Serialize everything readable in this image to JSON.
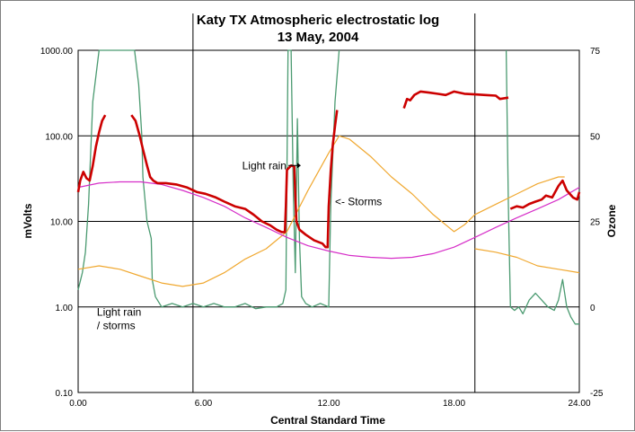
{
  "chart_data": {
    "type": "line",
    "title": "Katy TX Atmospheric electrostatic log",
    "subtitle": "13 May, 2004",
    "xlabel": "Central Standard Time",
    "ylabel_left": "mVolts",
    "ylabel_right": "Ozone",
    "xlim": [
      0,
      24
    ],
    "ylim_left": [
      0.1,
      1000
    ],
    "yscale_left": "log",
    "ylim_right": [
      -25,
      75
    ],
    "x_ticks": [
      "0.00",
      "6.00",
      "12.00",
      "18.00",
      "24.00"
    ],
    "y_ticks_left": [
      "1000.00",
      "100.00",
      "10.00",
      "1.00",
      "0.10"
    ],
    "y_ticks_right": [
      "75",
      "50",
      "25",
      "0",
      "-25"
    ],
    "grid": true,
    "vertical_markers": [
      5.5,
      19
    ],
    "series": [
      {
        "color": "#cc0000",
        "axis": "left",
        "segments": [
          [
            [
              0.0,
              22
            ],
            [
              0.1,
              30
            ],
            [
              0.25,
              38
            ],
            [
              0.4,
              32
            ],
            [
              0.55,
              30
            ],
            [
              0.7,
              45
            ],
            [
              0.85,
              75
            ],
            [
              1.0,
              110
            ],
            [
              1.15,
              150
            ],
            [
              1.3,
              175
            ]
          ],
          [
            [
              2.55,
              175
            ],
            [
              2.75,
              150
            ],
            [
              2.95,
              100
            ],
            [
              3.1,
              70
            ],
            [
              3.3,
              45
            ],
            [
              3.45,
              33
            ],
            [
              3.6,
              30
            ],
            [
              3.8,
              28
            ],
            [
              4.2,
              28
            ],
            [
              4.7,
              27
            ],
            [
              5.2,
              25
            ],
            [
              5.7,
              22
            ],
            [
              6.1,
              21
            ],
            [
              6.6,
              19
            ],
            [
              7.0,
              17
            ],
            [
              7.5,
              15
            ],
            [
              8.0,
              14
            ],
            [
              8.4,
              12
            ],
            [
              8.8,
              10
            ],
            [
              9.2,
              9
            ],
            [
              9.5,
              8
            ],
            [
              9.75,
              7.5
            ],
            [
              9.9,
              7.5
            ],
            [
              9.95,
              15
            ],
            [
              10.0,
              40
            ],
            [
              10.2,
              45
            ],
            [
              10.35,
              44
            ],
            [
              10.4,
              20
            ],
            [
              10.45,
              10
            ],
            [
              10.6,
              8
            ],
            [
              10.9,
              7
            ],
            [
              11.3,
              6
            ],
            [
              11.7,
              5.5
            ],
            [
              11.85,
              5
            ],
            [
              11.95,
              5
            ],
            [
              12.0,
              15
            ],
            [
              12.1,
              40
            ],
            [
              12.2,
              80
            ],
            [
              12.3,
              130
            ],
            [
              12.4,
              200
            ]
          ],
          [
            [
              15.6,
              210
            ],
            [
              15.75,
              270
            ],
            [
              15.9,
              260
            ],
            [
              16.1,
              300
            ],
            [
              16.4,
              330
            ],
            [
              16.8,
              320
            ],
            [
              17.2,
              310
            ],
            [
              17.6,
              300
            ],
            [
              18.0,
              330
            ],
            [
              18.5,
              310
            ],
            [
              19.0,
              305
            ],
            [
              19.5,
              300
            ],
            [
              20.0,
              295
            ],
            [
              20.2,
              270
            ],
            [
              20.6,
              280
            ]
          ],
          [
            [
              20.7,
              14
            ],
            [
              21.0,
              15
            ],
            [
              21.3,
              14.5
            ],
            [
              21.6,
              16
            ],
            [
              21.9,
              17
            ],
            [
              22.2,
              18
            ],
            [
              22.4,
              20
            ],
            [
              22.7,
              19
            ],
            [
              23.0,
              26
            ],
            [
              23.2,
              30
            ],
            [
              23.4,
              23
            ],
            [
              23.7,
              19
            ],
            [
              23.9,
              18
            ],
            [
              24.0,
              22
            ]
          ]
        ]
      },
      {
        "color": "#d62ec8",
        "axis": "left",
        "segments": [
          [
            [
              0.0,
              25
            ],
            [
              1.0,
              28
            ],
            [
              2.0,
              29
            ],
            [
              3.0,
              29
            ],
            [
              4.0,
              27
            ],
            [
              5.0,
              23
            ],
            [
              6.0,
              19
            ],
            [
              7.0,
              15
            ],
            [
              8.0,
              11
            ],
            [
              9.0,
              8.5
            ],
            [
              10.0,
              6.5
            ],
            [
              11.0,
              5.2
            ],
            [
              12.0,
              4.5
            ],
            [
              13.0,
              4.0
            ],
            [
              14.0,
              3.8
            ],
            [
              15.0,
              3.7
            ],
            [
              16.0,
              3.8
            ],
            [
              17.0,
              4.2
            ],
            [
              18.0,
              5.0
            ],
            [
              19.0,
              6.5
            ],
            [
              20.0,
              8.5
            ],
            [
              21.0,
              11
            ],
            [
              22.0,
              14
            ],
            [
              23.0,
              18
            ],
            [
              24.0,
              25
            ]
          ]
        ]
      },
      {
        "color": "#f0a830",
        "axis": "right",
        "segments": [
          [
            [
              0.0,
              11
            ],
            [
              1.0,
              12
            ],
            [
              2.0,
              11
            ],
            [
              3.0,
              9
            ],
            [
              4.0,
              7
            ],
            [
              5.0,
              6
            ],
            [
              6.0,
              7
            ],
            [
              7.0,
              10
            ],
            [
              8.0,
              14
            ],
            [
              9.0,
              17
            ],
            [
              10.0,
              22
            ],
            [
              11.0,
              34
            ],
            [
              12.0,
              45
            ],
            [
              12.5,
              50
            ],
            [
              13.0,
              49
            ],
            [
              14.0,
              44
            ],
            [
              15.0,
              38
            ],
            [
              16.0,
              33
            ],
            [
              17.0,
              27
            ],
            [
              18.0,
              22
            ],
            [
              18.5,
              24
            ],
            [
              19.0,
              27
            ],
            [
              20.0,
              30
            ],
            [
              21.0,
              33
            ],
            [
              22.0,
              36
            ],
            [
              22.5,
              37
            ],
            [
              23.0,
              38
            ],
            [
              23.3,
              38
            ]
          ],
          [
            [
              19.0,
              17
            ],
            [
              20.0,
              16
            ],
            [
              21.0,
              14.5
            ],
            [
              22.0,
              12
            ],
            [
              23.0,
              11
            ],
            [
              24.0,
              10
            ]
          ]
        ]
      },
      {
        "color": "#4a9a70",
        "axis": "right",
        "segments": [
          [
            [
              0.0,
              5
            ],
            [
              0.2,
              10
            ],
            [
              0.35,
              16
            ],
            [
              0.5,
              30
            ],
            [
              0.7,
              60
            ],
            [
              1.0,
              75
            ],
            [
              2.7,
              75
            ],
            [
              2.9,
              65
            ],
            [
              3.05,
              50
            ],
            [
              3.1,
              38
            ],
            [
              3.3,
              25
            ],
            [
              3.5,
              20
            ],
            [
              3.55,
              8
            ],
            [
              3.7,
              3
            ],
            [
              4.0,
              0
            ],
            [
              4.5,
              1
            ],
            [
              5.0,
              0
            ],
            [
              5.5,
              1
            ],
            [
              6.0,
              0
            ],
            [
              6.5,
              1
            ],
            [
              7.0,
              0
            ],
            [
              7.5,
              0
            ],
            [
              8.0,
              1
            ],
            [
              8.5,
              -0.5
            ],
            [
              9.0,
              0
            ],
            [
              9.5,
              0
            ],
            [
              9.8,
              1
            ],
            [
              9.95,
              5
            ],
            [
              10.0,
              40
            ],
            [
              10.05,
              75
            ],
            [
              10.2,
              75
            ],
            [
              10.3,
              35
            ],
            [
              10.4,
              10
            ],
            [
              10.5,
              55
            ],
            [
              10.6,
              20
            ],
            [
              10.7,
              3
            ],
            [
              10.9,
              1
            ],
            [
              11.2,
              0
            ],
            [
              11.6,
              1
            ],
            [
              12.0,
              0
            ],
            [
              12.1,
              30
            ],
            [
              12.3,
              60
            ],
            [
              12.5,
              75
            ]
          ],
          [
            [
              20.5,
              75
            ],
            [
              20.6,
              30
            ],
            [
              20.7,
              0
            ],
            [
              20.9,
              -1
            ],
            [
              21.1,
              0
            ],
            [
              21.3,
              -2
            ],
            [
              21.6,
              2
            ],
            [
              21.9,
              4
            ],
            [
              22.2,
              2
            ],
            [
              22.5,
              0
            ],
            [
              22.8,
              -1
            ],
            [
              23.0,
              2
            ],
            [
              23.2,
              8
            ],
            [
              23.4,
              0
            ],
            [
              23.6,
              -3
            ],
            [
              23.8,
              -5
            ],
            [
              24.0,
              -5
            ]
          ]
        ]
      }
    ],
    "annotations": [
      {
        "text": "Light rain",
        "x": 10.15,
        "y": 45,
        "axis": "left"
      },
      {
        "text": "<- Storms",
        "x": 12.3,
        "y": 17,
        "axis": "left"
      },
      {
        "text": "Light rain",
        "x": 0.9,
        "y": -1.5,
        "axis": "right"
      },
      {
        "text": "/ storms",
        "x": 0.9,
        "y": -5.5,
        "axis": "right"
      }
    ]
  }
}
